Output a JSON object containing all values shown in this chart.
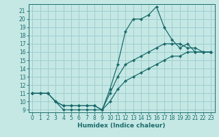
{
  "xlabel": "Humidex (Indice chaleur)",
  "background_color": "#c5e8e5",
  "grid_color": "#9ecece",
  "line_color": "#1a6b6b",
  "xlim": [
    -0.5,
    23.5
  ],
  "ylim": [
    8.7,
    21.8
  ],
  "yticks": [
    9,
    10,
    11,
    12,
    13,
    14,
    15,
    16,
    17,
    18,
    19,
    20,
    21
  ],
  "xticks": [
    0,
    1,
    2,
    3,
    4,
    5,
    6,
    7,
    8,
    9,
    10,
    11,
    12,
    13,
    14,
    15,
    16,
    17,
    18,
    19,
    20,
    21,
    22,
    23
  ],
  "line1_x": [
    0,
    1,
    2,
    3,
    4,
    5,
    6,
    7,
    8,
    9,
    10,
    11,
    12,
    13,
    14,
    15,
    16,
    17,
    18,
    19,
    20,
    21,
    22,
    23
  ],
  "line1_y": [
    11,
    11,
    11,
    10,
    9,
    9,
    9,
    9,
    9,
    9,
    11.5,
    14.5,
    18.5,
    20,
    20,
    20.5,
    21.5,
    19,
    17.5,
    16.5,
    17,
    16,
    16,
    16
  ],
  "line2_x": [
    0,
    1,
    2,
    3,
    4,
    5,
    6,
    7,
    8,
    9,
    10,
    11,
    12,
    13,
    14,
    15,
    16,
    17,
    18,
    19,
    20,
    21,
    22,
    23
  ],
  "line2_y": [
    11,
    11,
    11,
    10,
    9.5,
    9.5,
    9.5,
    9.5,
    9.5,
    9,
    11,
    13,
    14.5,
    15,
    15.5,
    16,
    16.5,
    17,
    17,
    17,
    16.5,
    16.5,
    16,
    16
  ],
  "line3_x": [
    0,
    1,
    2,
    3,
    4,
    5,
    6,
    7,
    8,
    9,
    10,
    11,
    12,
    13,
    14,
    15,
    16,
    17,
    18,
    19,
    20,
    21,
    22,
    23
  ],
  "line3_y": [
    11,
    11,
    11,
    10,
    9.5,
    9.5,
    9.5,
    9.5,
    9.5,
    9,
    10,
    11.5,
    12.5,
    13,
    13.5,
    14,
    14.5,
    15,
    15.5,
    15.5,
    16,
    16,
    16,
    16
  ],
  "tick_fontsize": 5.5,
  "xlabel_fontsize": 6.5
}
